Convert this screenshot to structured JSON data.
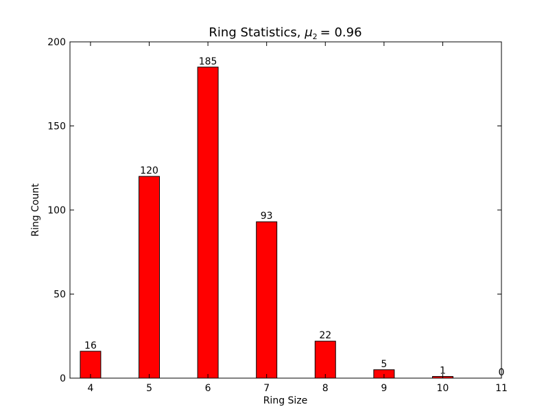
{
  "chart_data": {
    "type": "bar",
    "title_prefix": "Ring Statistics, ",
    "title_mu": "μ",
    "title_sub": "2",
    "title_suffix": "= 0.96",
    "xlabel": "Ring Size",
    "ylabel": "Ring Count",
    "categories": [
      "4",
      "5",
      "6",
      "7",
      "8",
      "9",
      "10",
      "11"
    ],
    "values": [
      16,
      120,
      185,
      93,
      22,
      5,
      1,
      0
    ],
    "value_labels": [
      "16",
      "120",
      "185",
      "93",
      "22",
      "5",
      "1",
      "0"
    ],
    "ylim": [
      0,
      200
    ],
    "yticks": [
      0,
      50,
      100,
      150,
      200
    ],
    "ytick_labels": [
      "0",
      "50",
      "100",
      "150",
      "200"
    ],
    "xtick_labels": [
      "4",
      "5",
      "6",
      "7",
      "8",
      "9",
      "10",
      "11"
    ],
    "bar_color": "#ff0000",
    "grid": false
  }
}
